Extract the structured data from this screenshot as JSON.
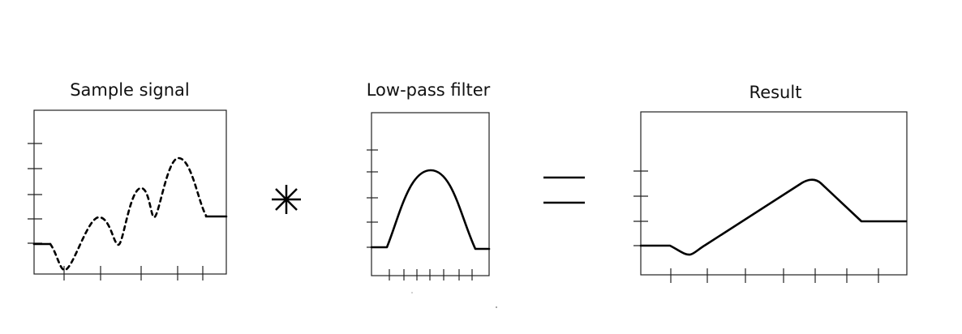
{
  "titles": {
    "sample_signal": "Sample signal",
    "low_pass_filter": "Low-pass filter",
    "result": "Result"
  },
  "operators": {
    "convolution": "convolution-operator",
    "equals": "equals-sign"
  },
  "colors": {
    "ink": "#000000",
    "frame": "#222222",
    "background": "#ffffff"
  }
}
